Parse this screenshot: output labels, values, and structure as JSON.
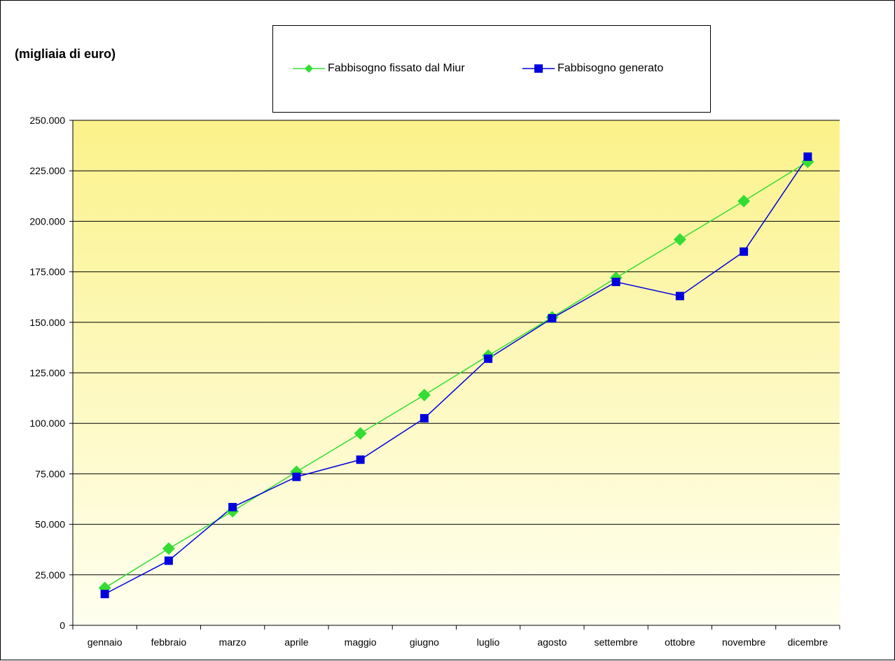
{
  "chart_data": {
    "type": "line",
    "title": "(migliaia di euro)",
    "categories": [
      "gennaio",
      "febbraio",
      "marzo",
      "aprile",
      "maggio",
      "giugno",
      "luglio",
      "agosto",
      "settembre",
      "ottobre",
      "novembre",
      "dicembre"
    ],
    "series": [
      {
        "name": "Fabbisogno fissato dal Miur",
        "color": "#33dd33",
        "marker": "diamond",
        "values": [
          18500,
          38000,
          56500,
          76000,
          95000,
          114000,
          133500,
          152500,
          172000,
          191000,
          210000,
          229500
        ]
      },
      {
        "name": "Fabbisogno generato",
        "color": "#0000dd",
        "marker": "square",
        "values": [
          15500,
          32000,
          58500,
          73500,
          82000,
          102500,
          132000,
          152000,
          170000,
          163000,
          185000,
          232000
        ]
      }
    ],
    "yticks": [
      "0",
      "25.000",
      "50.000",
      "75.000",
      "100.000",
      "125.000",
      "150.000",
      "175.000",
      "200.000",
      "225.000",
      "250.000"
    ],
    "ylim": [
      0,
      250000
    ],
    "xlabel": "",
    "ylabel": "",
    "grid": true,
    "legend_position": "top-center",
    "plot_background": "yellow gradient"
  }
}
